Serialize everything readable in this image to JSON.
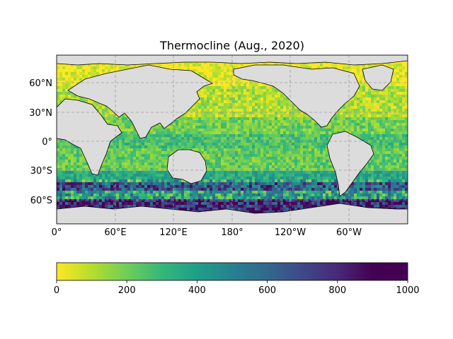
{
  "title": "Thermocline (Aug., 2020)",
  "map": {
    "projection": "PlateCarree",
    "central_longitude": 180,
    "extent_lon": [
      0,
      360
    ],
    "extent_lat": [
      -85,
      85
    ],
    "land_color": "#dcdcdc",
    "gridlines": "dashed",
    "lat_ticks": [
      "60°N",
      "30°N",
      "0°",
      "30°S",
      "60°S"
    ],
    "lon_ticks": [
      "0°",
      "60°E",
      "120°E",
      "180°",
      "120°W",
      "60°W"
    ]
  },
  "colorbar": {
    "cmap": "viridis_r",
    "range": [
      0,
      1000
    ],
    "ticks": [
      "0",
      "200",
      "400",
      "600",
      "800",
      "1000"
    ]
  }
}
